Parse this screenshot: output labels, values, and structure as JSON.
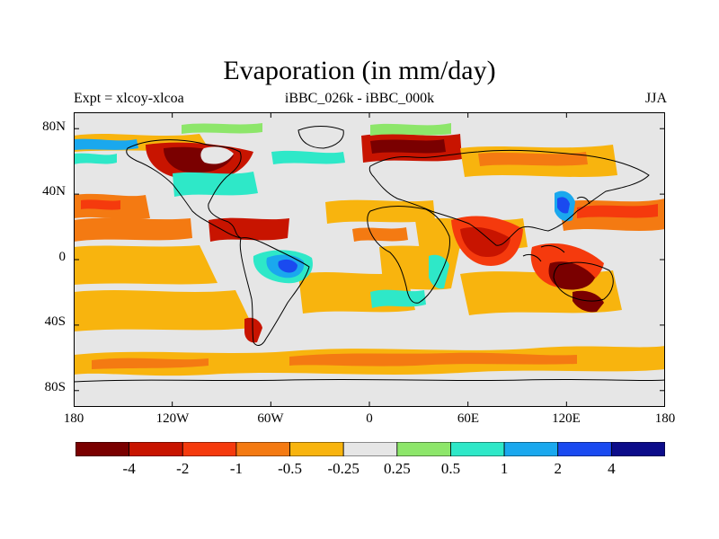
{
  "title": "Evaporation (in mm/day)",
  "left_label": "Expt = xlcoy-xlcoa",
  "center_label": "iBBC_026k - iBBC_000k",
  "right_label": "JJA",
  "lat_ticks": [
    "80N",
    "40N",
    "0",
    "40S",
    "80S"
  ],
  "lon_ticks": [
    "180",
    "120W",
    "60W",
    "0",
    "60E",
    "120E",
    "180"
  ],
  "colorbar": {
    "colors": [
      "#7a0000",
      "#c81400",
      "#f53a0d",
      "#f47a12",
      "#f8b40e",
      "#e6e6e6",
      "#8de66a",
      "#2ee8c8",
      "#1aa8ee",
      "#1a4af0",
      "#0c0c8a"
    ],
    "labels": [
      "-4",
      "-2",
      "-1",
      "-0.5",
      "-0.25",
      "0.25",
      "0.5",
      "1",
      "2",
      "4"
    ]
  },
  "map_colors": {
    "background": "#e6e6e6",
    "coastline": "#000000"
  }
}
